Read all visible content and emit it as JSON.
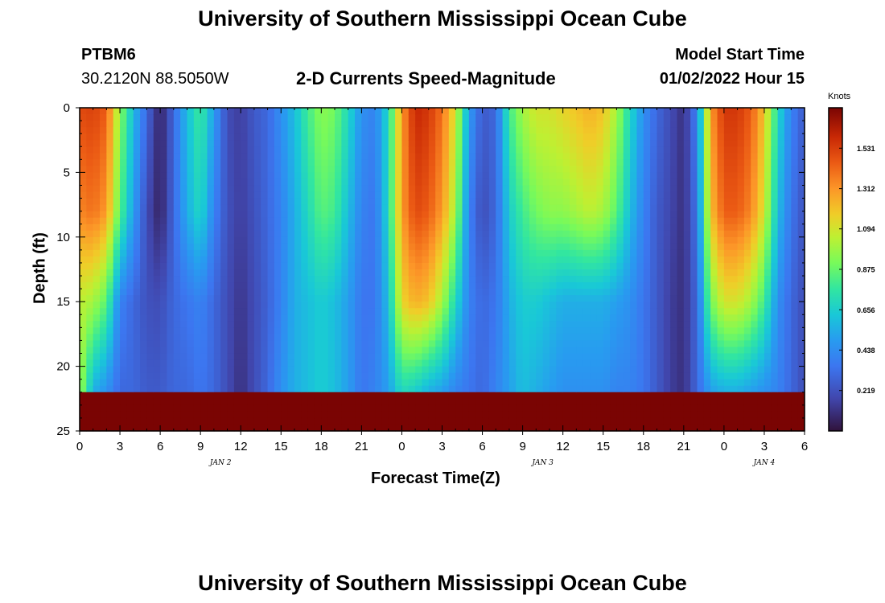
{
  "header": {
    "title": "University of Southern Mississippi Ocean Cube",
    "station": "PTBM6",
    "coords": "30.2120N  88.5050W",
    "subtitle": "2-D Currents Speed-Magnitude",
    "model_start_label": "Model Start Time",
    "model_start_value": "01/02/2022 Hour 15"
  },
  "footer": {
    "title": "University of Southern Mississippi Ocean Cube"
  },
  "chart_data": {
    "type": "heatmap",
    "title": "2-D Currents Speed-Magnitude",
    "xlabel": "Forecast Time(Z)",
    "ylabel": "Depth (ft)",
    "x_unit": "hours from 01/02/2022 00Z",
    "xlim": [
      0,
      54
    ],
    "ylim": [
      0,
      25
    ],
    "y_reversed": true,
    "x_ticks": [
      {
        "hour": 0,
        "label": "0"
      },
      {
        "hour": 3,
        "label": "3"
      },
      {
        "hour": 6,
        "label": "6"
      },
      {
        "hour": 9,
        "label": "9"
      },
      {
        "hour": 12,
        "label": "12"
      },
      {
        "hour": 15,
        "label": "15"
      },
      {
        "hour": 18,
        "label": "18"
      },
      {
        "hour": 21,
        "label": "21"
      },
      {
        "hour": 24,
        "label": "0"
      },
      {
        "hour": 27,
        "label": "3"
      },
      {
        "hour": 30,
        "label": "6"
      },
      {
        "hour": 33,
        "label": "9"
      },
      {
        "hour": 36,
        "label": "12"
      },
      {
        "hour": 39,
        "label": "15"
      },
      {
        "hour": 42,
        "label": "18"
      },
      {
        "hour": 45,
        "label": "21"
      },
      {
        "hour": 48,
        "label": "0"
      },
      {
        "hour": 51,
        "label": "3"
      },
      {
        "hour": 54,
        "label": "6"
      }
    ],
    "date_labels": [
      {
        "hour": 10.5,
        "label": "JAN 2"
      },
      {
        "hour": 34.5,
        "label": "JAN 3"
      },
      {
        "hour": 51,
        "label": "JAN 4"
      }
    ],
    "y_ticks": [
      0,
      5,
      10,
      15,
      20,
      25
    ],
    "colorbar": {
      "unit": "Knots",
      "range": [
        0,
        1.75
      ],
      "ticks": [
        "1.531",
        "1.312",
        "1.094",
        "0.875",
        "0.656",
        "0.438",
        "0.219"
      ]
    },
    "profiles": [
      [
        0,
        1.5,
        1.35,
        1.05,
        1.0
      ],
      [
        1,
        1.52,
        1.4,
        1.0,
        0.55
      ],
      [
        2,
        1.45,
        1.3,
        0.85,
        0.45
      ],
      [
        3,
        0.95,
        0.85,
        0.4,
        0.3
      ],
      [
        4,
        0.6,
        0.5,
        0.3,
        0.3
      ],
      [
        5,
        0.3,
        0.2,
        0.22,
        0.25
      ],
      [
        6,
        0.05,
        0.05,
        0.2,
        0.25
      ],
      [
        7,
        0.3,
        0.3,
        0.3,
        0.3
      ],
      [
        8,
        0.6,
        0.55,
        0.35,
        0.3
      ],
      [
        9,
        0.8,
        0.7,
        0.4,
        0.35
      ],
      [
        10,
        0.5,
        0.4,
        0.3,
        0.3
      ],
      [
        11,
        0.2,
        0.22,
        0.2,
        0.2
      ],
      [
        12,
        0.15,
        0.15,
        0.12,
        0.1
      ],
      [
        13,
        0.25,
        0.22,
        0.2,
        0.2
      ],
      [
        14,
        0.3,
        0.3,
        0.28,
        0.3
      ],
      [
        15,
        0.45,
        0.4,
        0.4,
        0.45
      ],
      [
        16,
        0.6,
        0.55,
        0.55,
        0.55
      ],
      [
        17,
        0.8,
        0.7,
        0.6,
        0.6
      ],
      [
        18,
        0.95,
        0.85,
        0.65,
        0.65
      ],
      [
        19,
        0.9,
        0.8,
        0.6,
        0.6
      ],
      [
        20,
        0.7,
        0.6,
        0.5,
        0.5
      ],
      [
        21,
        0.45,
        0.4,
        0.35,
        0.35
      ],
      [
        22,
        0.4,
        0.35,
        0.35,
        0.4
      ],
      [
        23,
        0.7,
        0.7,
        0.6,
        0.5
      ],
      [
        24,
        1.3,
        1.3,
        1.15,
        0.7
      ],
      [
        25,
        1.6,
        1.5,
        1.25,
        0.65
      ],
      [
        26,
        1.55,
        1.45,
        1.2,
        0.55
      ],
      [
        27,
        1.4,
        1.3,
        1.0,
        0.5
      ],
      [
        28,
        1.1,
        1.0,
        0.7,
        0.4
      ],
      [
        29,
        0.5,
        0.4,
        0.4,
        0.35
      ],
      [
        30,
        0.25,
        0.2,
        0.3,
        0.3
      ],
      [
        31,
        0.3,
        0.3,
        0.35,
        0.4
      ],
      [
        32,
        0.8,
        0.65,
        0.55,
        0.5
      ],
      [
        33,
        1.0,
        0.8,
        0.65,
        0.6
      ],
      [
        34,
        1.1,
        0.9,
        0.65,
        0.55
      ],
      [
        35,
        1.1,
        0.95,
        0.6,
        0.5
      ],
      [
        36,
        1.15,
        0.95,
        0.55,
        0.45
      ],
      [
        37,
        1.2,
        1.0,
        0.55,
        0.45
      ],
      [
        38,
        1.25,
        1.05,
        0.55,
        0.45
      ],
      [
        39,
        1.2,
        1.0,
        0.55,
        0.45
      ],
      [
        40,
        1.0,
        0.85,
        0.5,
        0.4
      ],
      [
        41,
        0.7,
        0.6,
        0.45,
        0.4
      ],
      [
        42,
        0.45,
        0.4,
        0.35,
        0.35
      ],
      [
        43,
        0.3,
        0.25,
        0.25,
        0.25
      ],
      [
        44,
        0.2,
        0.18,
        0.15,
        0.15
      ],
      [
        45,
        0.1,
        0.1,
        0.1,
        0.1
      ],
      [
        46,
        0.4,
        0.35,
        0.3,
        0.3
      ],
      [
        47,
        1.3,
        1.2,
        0.9,
        0.5
      ],
      [
        48,
        1.55,
        1.45,
        1.1,
        0.55
      ],
      [
        49,
        1.55,
        1.45,
        1.1,
        0.55
      ],
      [
        50,
        1.45,
        1.35,
        1.0,
        0.5
      ],
      [
        51,
        1.2,
        1.1,
        0.8,
        0.45
      ],
      [
        52,
        0.7,
        0.6,
        0.45,
        0.4
      ],
      [
        53,
        0.4,
        0.35,
        0.3,
        0.3
      ],
      [
        54,
        0.25,
        0.22,
        0.2,
        0.2
      ]
    ]
  }
}
